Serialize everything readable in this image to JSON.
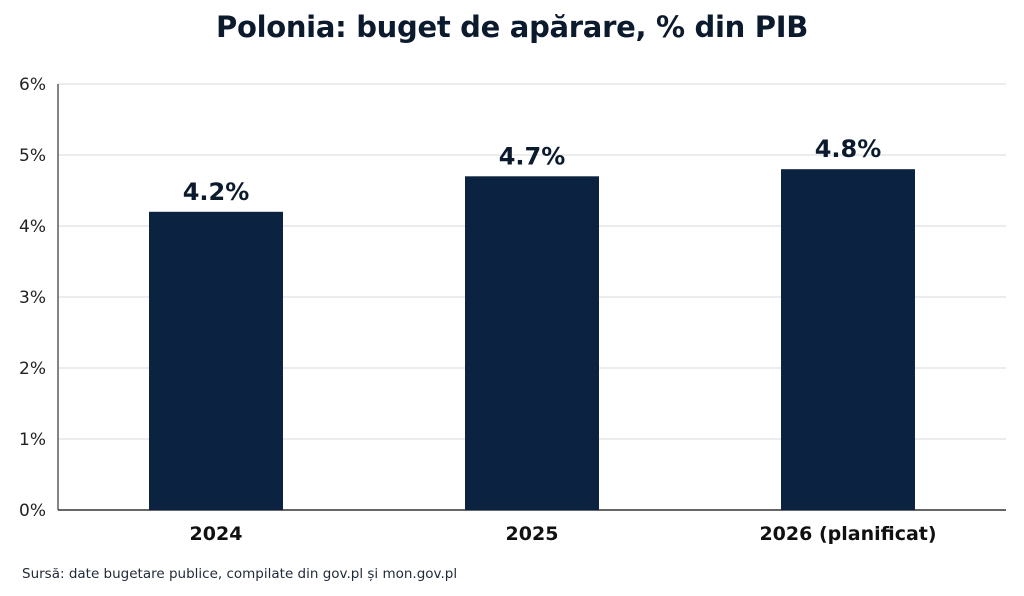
{
  "colors": {
    "bar": "#0b2240",
    "grid": "#d9d9d9",
    "axis": "#333333",
    "title": "#0c1a2e"
  },
  "chart_data": {
    "type": "bar",
    "title": "Polonia: buget de apărare, % din PIB",
    "xlabel": "",
    "ylabel": "",
    "categories": [
      "2024",
      "2025",
      "2026 (planificat)"
    ],
    "values": [
      4.2,
      4.7,
      4.8
    ],
    "data_labels": [
      "4.2%",
      "4.7%",
      "4.8%"
    ],
    "ylim": [
      0,
      6
    ],
    "y_ticks": [
      0,
      1,
      2,
      3,
      4,
      5,
      6
    ],
    "y_tick_labels": [
      "0%",
      "1%",
      "2%",
      "3%",
      "4%",
      "5%",
      "6%"
    ],
    "grid": true,
    "legend": "none"
  },
  "source": "Sursă: date bugetare publice, compilate din gov.pl și mon.gov.pl"
}
